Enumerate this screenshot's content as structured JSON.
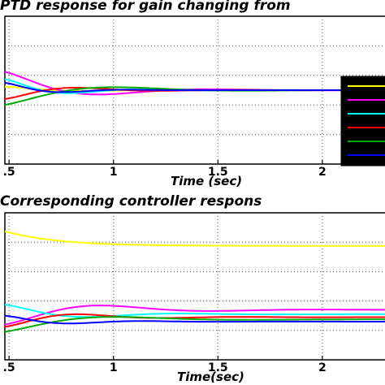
{
  "chart_data": [
    {
      "type": "line",
      "title": "PTD response for gain changing from",
      "xlabel": "Time (sec)",
      "ylabel": "",
      "xlim": [
        0.48,
        2.3
      ],
      "xticks": [
        {
          "v": 0.5,
          "label": ".5"
        },
        {
          "v": 1,
          "label": "1"
        },
        {
          "v": 1.5,
          "label": "1.5"
        },
        {
          "v": 2,
          "label": "2"
        }
      ],
      "grid": true,
      "steady_value": 0.0,
      "ylim": [
        -1.0,
        1.0
      ],
      "series": [
        {
          "color": "#ffff00",
          "start": 0.05,
          "freq": 7,
          "decay": 3.5
        },
        {
          "color": "#ff00ff",
          "start": 0.25,
          "freq": 6,
          "decay": 3.0
        },
        {
          "color": "#00ffff",
          "start": 0.15,
          "freq": 9,
          "decay": 4.0
        },
        {
          "color": "#ff0000",
          "start": -0.12,
          "freq": 8,
          "decay": 3.5
        },
        {
          "color": "#00aa00",
          "start": -0.2,
          "freq": 5,
          "decay": 2.8
        },
        {
          "color": "#0000ff",
          "start": 0.1,
          "freq": 10,
          "decay": 4.5
        }
      ],
      "legend": {
        "placement": "right",
        "colors": [
          "#ffff00",
          "#ff00ff",
          "#00ffff",
          "#ff0000",
          "#00aa00",
          "#0000ff"
        ]
      }
    },
    {
      "type": "line",
      "title": "Corresponding controller respons",
      "xlabel": "Time(sec)",
      "ylabel": "",
      "xlim": [
        0.48,
        2.3
      ],
      "xticks": [
        {
          "v": 0.5,
          "label": ".5"
        },
        {
          "v": 1,
          "label": "1"
        },
        {
          "v": 1.5,
          "label": "1.5"
        },
        {
          "v": 2,
          "label": "2"
        }
      ],
      "grid": true,
      "ylim": [
        -1.0,
        1.0
      ],
      "series": [
        {
          "color": "#ffff00",
          "base": 0.55,
          "start": 0.75,
          "freq": 0.5,
          "decay": 4.0
        },
        {
          "color": "#ff00ff",
          "base": -0.32,
          "start": -0.52,
          "freq": 6,
          "decay": 2.5
        },
        {
          "color": "#00ffff",
          "base": -0.38,
          "start": -0.25,
          "freq": 7,
          "decay": 3.0
        },
        {
          "color": "#ff0000",
          "base": -0.42,
          "start": -0.55,
          "freq": 8,
          "decay": 3.2
        },
        {
          "color": "#00aa00",
          "base": -0.45,
          "start": -0.62,
          "freq": 5,
          "decay": 2.8
        },
        {
          "color": "#0000ff",
          "base": -0.48,
          "start": -0.4,
          "freq": 9,
          "decay": 3.5
        }
      ]
    }
  ]
}
